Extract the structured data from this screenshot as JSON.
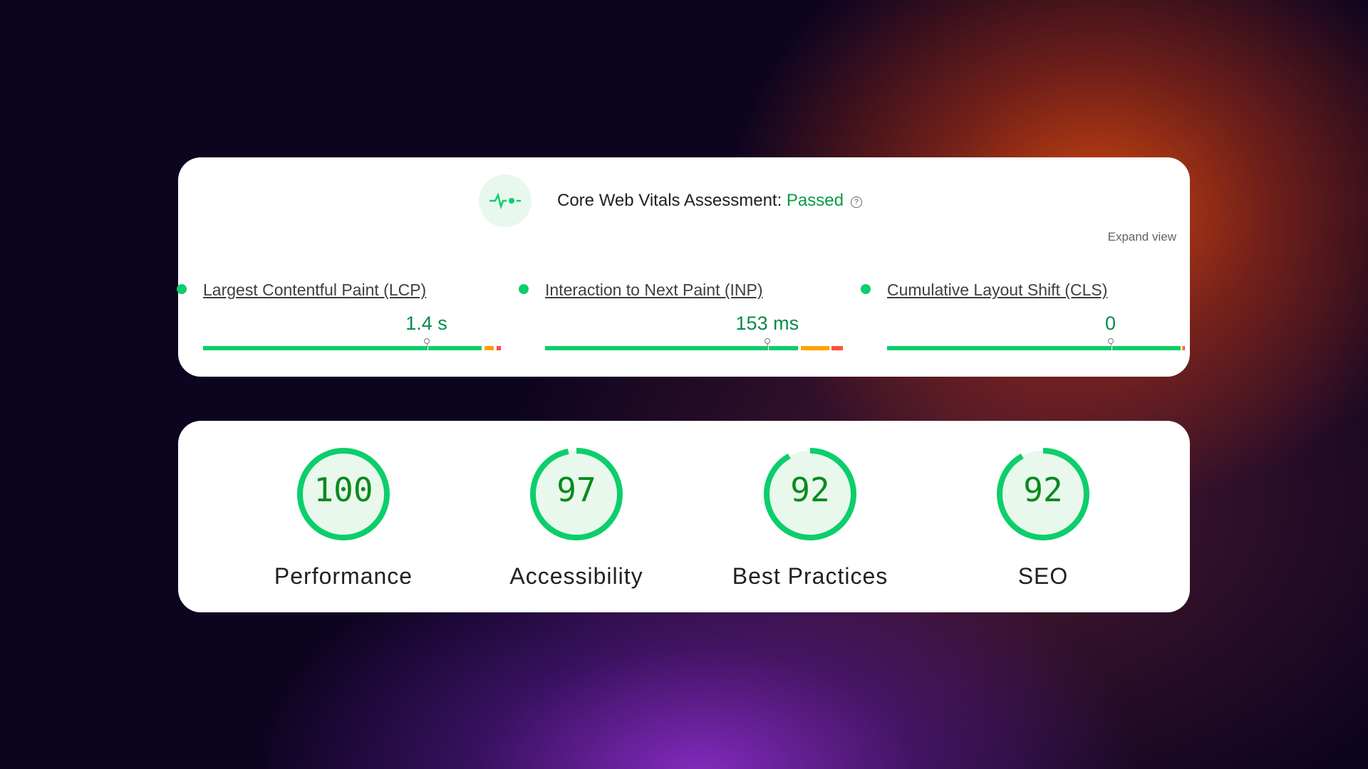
{
  "assessment": {
    "title": "Core Web Vitals Assessment:",
    "status": "Passed",
    "help_icon": "question-circle-icon",
    "expand_label": "Expand view",
    "icon": "pulse-icon"
  },
  "metrics": [
    {
      "label": "Largest Contentful Paint (LCP)",
      "value": "1.4 s",
      "marker": 0.75,
      "segments": [
        [
          0,
          0.935,
          "#0cce6b"
        ],
        [
          0.945,
          0.975,
          "#ffa400"
        ],
        [
          0.985,
          1,
          "#ff4e42"
        ]
      ]
    },
    {
      "label": "Interaction to Next Paint (INP)",
      "value": "153 ms",
      "marker": 0.746,
      "segments": [
        [
          0,
          0.85,
          "#0cce6b"
        ],
        [
          0.86,
          0.955,
          "#ffa400"
        ],
        [
          0.962,
          1,
          "#ff4e42"
        ]
      ]
    },
    {
      "label": "Cumulative Layout Shift (CLS)",
      "value": "0",
      "marker": 0.75,
      "segments": [
        [
          0,
          0.985,
          "#0cce6b"
        ],
        [
          0.99,
          0.995,
          "#ffa400"
        ],
        [
          0.996,
          1,
          "#ff4e42"
        ]
      ]
    }
  ],
  "scores": [
    {
      "label": "Performance",
      "score": "100",
      "value": 100
    },
    {
      "label": "Accessibility",
      "score": "97",
      "value": 97
    },
    {
      "label": "Best Practices",
      "score": "92",
      "value": 92
    },
    {
      "label": "SEO",
      "score": "92",
      "value": 92
    }
  ],
  "colors": {
    "pass": "#0cce6b",
    "average": "#ffa400",
    "fail": "#ff4e42",
    "score_text": "#0b8a1e"
  }
}
